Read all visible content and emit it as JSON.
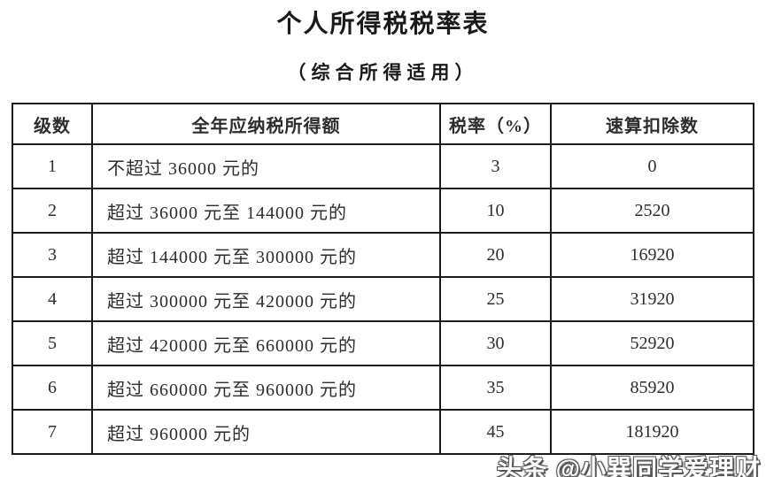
{
  "page": {
    "title": "个人所得税税率表",
    "subtitle": "（综合所得适用）"
  },
  "table": {
    "headers": [
      "级数",
      "全年应纳税所得额",
      "税率（%）",
      "速算扣除数"
    ],
    "rows": [
      {
        "level": "1",
        "income": "不超过 36000 元的",
        "rate": "3",
        "deduction": "0"
      },
      {
        "level": "2",
        "income": "超过 36000 元至 144000 元的",
        "rate": "10",
        "deduction": "2520"
      },
      {
        "level": "3",
        "income": "超过 144000 元至 300000 元的",
        "rate": "20",
        "deduction": "16920"
      },
      {
        "level": "4",
        "income": "超过 300000 元至 420000 元的",
        "rate": "25",
        "deduction": "31920"
      },
      {
        "level": "5",
        "income": "超过 420000 元至 660000 元的",
        "rate": "30",
        "deduction": "52920"
      },
      {
        "level": "6",
        "income": "超过 660000 元至 960000 元的",
        "rate": "35",
        "deduction": "85920"
      },
      {
        "level": "7",
        "income": "超过 960000 元的",
        "rate": "45",
        "deduction": "181920"
      }
    ]
  },
  "watermark": {
    "text": "头条 @小巽同学爱理财"
  },
  "colors": {
    "border": "#1c1c1c",
    "text": "#2d2d2d",
    "background": "#ffffff",
    "watermark_fill": "#ffffff",
    "watermark_outline": "#5a5a5a"
  }
}
